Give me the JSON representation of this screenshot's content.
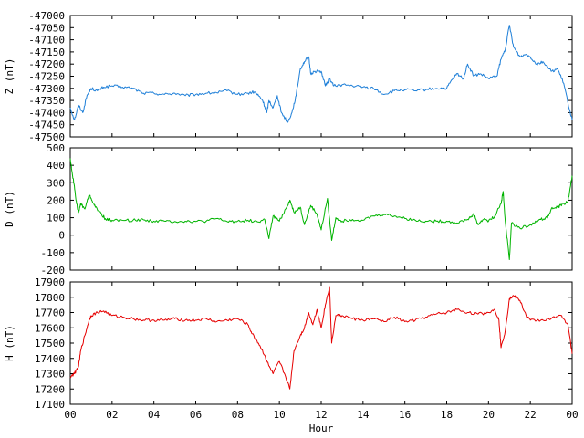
{
  "chart_data": [
    {
      "type": "line",
      "ylabel": "Z (nT)",
      "ylim": [
        -47500,
        -47000
      ],
      "yticks": [
        -47000,
        -47050,
        -47100,
        -47150,
        -47200,
        -47250,
        -47300,
        -47350,
        -47400,
        -47450,
        -47500
      ],
      "xlim": [
        0,
        24
      ],
      "series": [
        {
          "color": "#1e7fd8",
          "points": [
            [
              0.0,
              -47380
            ],
            [
              0.2,
              -47430
            ],
            [
              0.4,
              -47370
            ],
            [
              0.6,
              -47400
            ],
            [
              0.8,
              -47330
            ],
            [
              1.0,
              -47300
            ],
            [
              1.3,
              -47310
            ],
            [
              1.6,
              -47295
            ],
            [
              2.0,
              -47290
            ],
            [
              2.5,
              -47295
            ],
            [
              3.0,
              -47300
            ],
            [
              3.5,
              -47320
            ],
            [
              4.0,
              -47320
            ],
            [
              4.5,
              -47325
            ],
            [
              5.0,
              -47320
            ],
            [
              5.5,
              -47330
            ],
            [
              6.0,
              -47325
            ],
            [
              6.5,
              -47320
            ],
            [
              7.0,
              -47318
            ],
            [
              7.5,
              -47310
            ],
            [
              8.0,
              -47325
            ],
            [
              8.5,
              -47320
            ],
            [
              8.8,
              -47315
            ],
            [
              9.0,
              -47330
            ],
            [
              9.2,
              -47350
            ],
            [
              9.4,
              -47400
            ],
            [
              9.5,
              -47350
            ],
            [
              9.7,
              -47380
            ],
            [
              9.9,
              -47330
            ],
            [
              10.1,
              -47400
            ],
            [
              10.4,
              -47440
            ],
            [
              10.6,
              -47400
            ],
            [
              10.8,
              -47330
            ],
            [
              11.0,
              -47220
            ],
            [
              11.2,
              -47190
            ],
            [
              11.4,
              -47170
            ],
            [
              11.5,
              -47240
            ],
            [
              11.7,
              -47230
            ],
            [
              12.0,
              -47230
            ],
            [
              12.2,
              -47290
            ],
            [
              12.4,
              -47260
            ],
            [
              12.6,
              -47290
            ],
            [
              13.0,
              -47285
            ],
            [
              13.5,
              -47290
            ],
            [
              14.0,
              -47295
            ],
            [
              14.5,
              -47300
            ],
            [
              15.0,
              -47325
            ],
            [
              15.5,
              -47310
            ],
            [
              16.0,
              -47305
            ],
            [
              16.5,
              -47310
            ],
            [
              17.0,
              -47305
            ],
            [
              17.5,
              -47300
            ],
            [
              18.0,
              -47300
            ],
            [
              18.3,
              -47260
            ],
            [
              18.5,
              -47240
            ],
            [
              18.8,
              -47260
            ],
            [
              19.0,
              -47200
            ],
            [
              19.3,
              -47250
            ],
            [
              19.6,
              -47240
            ],
            [
              20.0,
              -47260
            ],
            [
              20.4,
              -47250
            ],
            [
              20.6,
              -47180
            ],
            [
              20.8,
              -47140
            ],
            [
              21.0,
              -47040
            ],
            [
              21.2,
              -47130
            ],
            [
              21.5,
              -47170
            ],
            [
              21.8,
              -47160
            ],
            [
              22.0,
              -47170
            ],
            [
              22.3,
              -47200
            ],
            [
              22.6,
              -47190
            ],
            [
              23.0,
              -47230
            ],
            [
              23.3,
              -47220
            ],
            [
              23.6,
              -47280
            ],
            [
              23.8,
              -47360
            ],
            [
              24.0,
              -47430
            ]
          ]
        }
      ]
    },
    {
      "type": "line",
      "ylabel": "D (nT)",
      "ylim": [
        -200,
        500
      ],
      "yticks": [
        500,
        400,
        300,
        200,
        100,
        0,
        -100,
        -200
      ],
      "xlim": [
        0,
        24
      ],
      "series": [
        {
          "color": "#00b400",
          "points": [
            [
              0.0,
              440
            ],
            [
              0.1,
              350
            ],
            [
              0.2,
              280
            ],
            [
              0.3,
              180
            ],
            [
              0.4,
              130
            ],
            [
              0.5,
              180
            ],
            [
              0.7,
              150
            ],
            [
              0.9,
              230
            ],
            [
              1.0,
              210
            ],
            [
              1.2,
              160
            ],
            [
              1.5,
              120
            ],
            [
              1.7,
              90
            ],
            [
              2.0,
              85
            ],
            [
              2.5,
              85
            ],
            [
              3.0,
              85
            ],
            [
              3.5,
              88
            ],
            [
              4.0,
              80
            ],
            [
              4.5,
              80
            ],
            [
              5.0,
              78
            ],
            [
              5.5,
              80
            ],
            [
              6.0,
              78
            ],
            [
              6.5,
              80
            ],
            [
              7.0,
              95
            ],
            [
              7.5,
              78
            ],
            [
              8.0,
              80
            ],
            [
              8.5,
              85
            ],
            [
              9.0,
              75
            ],
            [
              9.3,
              90
            ],
            [
              9.5,
              -20
            ],
            [
              9.7,
              110
            ],
            [
              10.0,
              80
            ],
            [
              10.3,
              150
            ],
            [
              10.5,
              200
            ],
            [
              10.7,
              130
            ],
            [
              11.0,
              160
            ],
            [
              11.2,
              60
            ],
            [
              11.5,
              170
            ],
            [
              11.8,
              120
            ],
            [
              12.0,
              30
            ],
            [
              12.3,
              210
            ],
            [
              12.5,
              -30
            ],
            [
              12.7,
              100
            ],
            [
              13.0,
              80
            ],
            [
              13.5,
              90
            ],
            [
              14.0,
              85
            ],
            [
              14.5,
              110
            ],
            [
              15.0,
              120
            ],
            [
              15.5,
              110
            ],
            [
              16.0,
              95
            ],
            [
              16.5,
              85
            ],
            [
              17.0,
              80
            ],
            [
              17.5,
              80
            ],
            [
              18.0,
              80
            ],
            [
              18.5,
              70
            ],
            [
              19.0,
              90
            ],
            [
              19.3,
              120
            ],
            [
              19.5,
              60
            ],
            [
              19.8,
              95
            ],
            [
              20.0,
              80
            ],
            [
              20.3,
              110
            ],
            [
              20.6,
              180
            ],
            [
              20.7,
              250
            ],
            [
              20.8,
              80
            ],
            [
              21.0,
              -140
            ],
            [
              21.1,
              70
            ],
            [
              21.5,
              40
            ],
            [
              22.0,
              60
            ],
            [
              22.5,
              90
            ],
            [
              22.8,
              100
            ],
            [
              23.0,
              150
            ],
            [
              23.3,
              160
            ],
            [
              23.6,
              180
            ],
            [
              23.8,
              190
            ],
            [
              24.0,
              340
            ]
          ]
        }
      ]
    },
    {
      "type": "line",
      "ylabel": "H (nT)",
      "xlabel": "Hour",
      "ylim": [
        17100,
        17900
      ],
      "yticks": [
        17900,
        17800,
        17700,
        17600,
        17500,
        17400,
        17300,
        17200,
        17100
      ],
      "xlim": [
        0,
        24
      ],
      "xticks": [
        "00",
        "02",
        "04",
        "06",
        "08",
        "10",
        "12",
        "14",
        "16",
        "18",
        "20",
        "22",
        "00"
      ],
      "series": [
        {
          "color": "#e60000",
          "points": [
            [
              0.0,
              17280
            ],
            [
              0.2,
              17300
            ],
            [
              0.4,
              17350
            ],
            [
              0.5,
              17450
            ],
            [
              0.7,
              17550
            ],
            [
              0.9,
              17650
            ],
            [
              1.0,
              17680
            ],
            [
              1.3,
              17700
            ],
            [
              1.6,
              17710
            ],
            [
              2.0,
              17680
            ],
            [
              2.5,
              17670
            ],
            [
              3.0,
              17660
            ],
            [
              3.5,
              17650
            ],
            [
              4.0,
              17650
            ],
            [
              4.5,
              17650
            ],
            [
              5.0,
              17660
            ],
            [
              5.5,
              17650
            ],
            [
              6.0,
              17650
            ],
            [
              6.5,
              17660
            ],
            [
              7.0,
              17640
            ],
            [
              7.5,
              17650
            ],
            [
              8.0,
              17660
            ],
            [
              8.5,
              17620
            ],
            [
              8.7,
              17560
            ],
            [
              9.0,
              17500
            ],
            [
              9.3,
              17420
            ],
            [
              9.5,
              17350
            ],
            [
              9.7,
              17300
            ],
            [
              10.0,
              17380
            ],
            [
              10.3,
              17280
            ],
            [
              10.5,
              17200
            ],
            [
              10.7,
              17450
            ],
            [
              11.0,
              17550
            ],
            [
              11.2,
              17600
            ],
            [
              11.4,
              17700
            ],
            [
              11.6,
              17620
            ],
            [
              11.8,
              17720
            ],
            [
              12.0,
              17600
            ],
            [
              12.2,
              17750
            ],
            [
              12.4,
              17870
            ],
            [
              12.5,
              17500
            ],
            [
              12.7,
              17680
            ],
            [
              13.0,
              17680
            ],
            [
              13.5,
              17660
            ],
            [
              14.0,
              17650
            ],
            [
              14.5,
              17660
            ],
            [
              15.0,
              17640
            ],
            [
              15.5,
              17670
            ],
            [
              16.0,
              17640
            ],
            [
              16.5,
              17650
            ],
            [
              17.0,
              17670
            ],
            [
              17.5,
              17690
            ],
            [
              18.0,
              17700
            ],
            [
              18.5,
              17720
            ],
            [
              19.0,
              17700
            ],
            [
              19.5,
              17690
            ],
            [
              20.0,
              17700
            ],
            [
              20.3,
              17720
            ],
            [
              20.5,
              17650
            ],
            [
              20.6,
              17470
            ],
            [
              20.8,
              17580
            ],
            [
              21.0,
              17790
            ],
            [
              21.2,
              17810
            ],
            [
              21.5,
              17780
            ],
            [
              21.8,
              17680
            ],
            [
              22.0,
              17650
            ],
            [
              22.5,
              17650
            ],
            [
              23.0,
              17660
            ],
            [
              23.5,
              17680
            ],
            [
              23.8,
              17620
            ],
            [
              24.0,
              17430
            ]
          ]
        }
      ]
    }
  ]
}
